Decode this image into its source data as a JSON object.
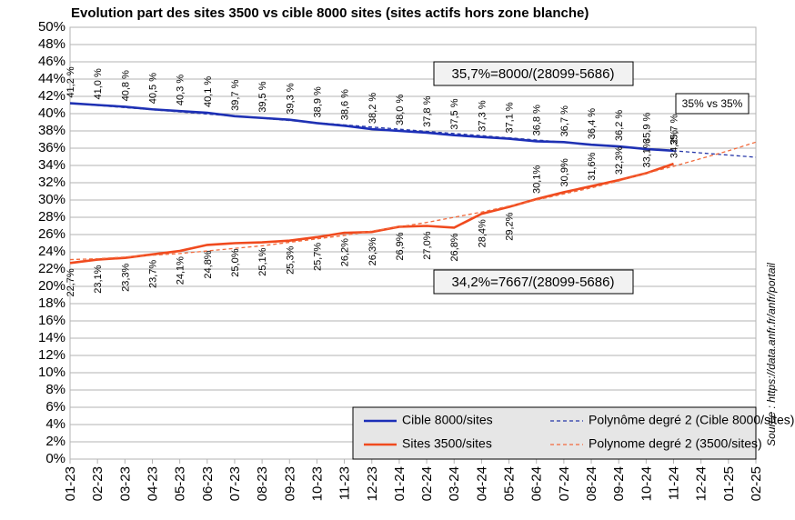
{
  "chart_data": {
    "type": "line",
    "title": "Evolution part des sites 3500 vs cible 8000 sites (sites actifs hors zone blanche)",
    "categories": [
      "01-23",
      "02-23",
      "03-23",
      "04-23",
      "05-23",
      "06-23",
      "07-23",
      "08-23",
      "09-23",
      "10-23",
      "11-23",
      "12-23",
      "01-24",
      "02-24",
      "03-24",
      "04-24",
      "05-24",
      "06-24",
      "07-24",
      "08-24",
      "09-24",
      "10-24",
      "11-24",
      "12-24",
      "01-25",
      "02-25"
    ],
    "series": [
      {
        "name": "Cible 8000/sites",
        "color": "#1c2fb8",
        "style": "solid",
        "values": [
          41.2,
          41.0,
          40.8,
          40.5,
          40.3,
          40.1,
          39.7,
          39.5,
          39.3,
          38.9,
          38.6,
          38.2,
          38.0,
          37.8,
          37.5,
          37.3,
          37.1,
          36.8,
          36.7,
          36.4,
          36.2,
          35.9,
          35.7,
          null,
          null,
          null
        ],
        "value_labels": [
          "41,2 %",
          "41,0 %",
          "40,8 %",
          "40,5 %",
          "40,3 %",
          "40,1 %",
          "39,7 %",
          "39,5 %",
          "39,3 %",
          "38,9 %",
          "38,6 %",
          "38,2 %",
          "38,0 %",
          "37,8 %",
          "37,5 %",
          "37,3 %",
          "37,1 %",
          "36,8 %",
          "36,7 %",
          "36,4 %",
          "36,2 %",
          "35,9 %",
          "35,7 %",
          null,
          null,
          null
        ]
      },
      {
        "name": "Sites 3500/sites",
        "color": "#f04a1e",
        "style": "solid",
        "values": [
          22.7,
          23.1,
          23.3,
          23.7,
          24.1,
          24.8,
          25.0,
          25.1,
          25.3,
          25.7,
          26.2,
          26.3,
          26.9,
          27.0,
          26.8,
          28.4,
          29.2,
          30.1,
          30.9,
          31.6,
          32.3,
          33.1,
          34.2,
          null,
          null,
          null
        ],
        "value_labels": [
          "22,7%",
          "23,1%",
          "23,3%",
          "23,7%",
          "24,1%",
          "24,8%",
          "25,0%",
          "25,1%",
          "25,3%",
          "25,7%",
          "26,2%",
          "26,3%",
          "26,9%",
          "27,0%",
          "26,8%",
          "28,4%",
          "29,2%",
          "30,1%",
          "30,9%",
          "31,6%",
          "32,3%",
          "33,1%",
          "34,2%",
          null,
          null,
          null
        ]
      },
      {
        "name": "Polynôme degré 2 (Cible 8000/sites)",
        "color": "#2536a8",
        "style": "dashed",
        "values": [
          41.2,
          40.95,
          40.7,
          40.45,
          40.2,
          39.95,
          39.7,
          39.45,
          39.2,
          38.95,
          38.7,
          38.45,
          38.2,
          37.95,
          37.7,
          37.45,
          37.2,
          36.95,
          36.7,
          36.45,
          36.2,
          35.95,
          35.7,
          35.45,
          35.2,
          34.95
        ]
      },
      {
        "name": "Polynome degré 2 (3500/sites)",
        "color": "#f26a3c",
        "style": "dashed",
        "values": [
          23.1,
          23.2,
          23.4,
          23.6,
          23.8,
          24.1,
          24.4,
          24.7,
          25.1,
          25.5,
          25.9,
          26.4,
          26.9,
          27.4,
          28.0,
          28.6,
          29.3,
          30.0,
          30.7,
          31.4,
          32.2,
          33.1,
          33.9,
          34.8,
          35.7,
          36.7
        ]
      }
    ],
    "ylim": [
      0,
      50
    ],
    "yticks": [
      {
        "value": 0,
        "label": "0%"
      },
      {
        "value": 2,
        "label": "2%"
      },
      {
        "value": 4,
        "label": "4%"
      },
      {
        "value": 6,
        "label": "6%"
      },
      {
        "value": 8,
        "label": "8%"
      },
      {
        "value": 10,
        "label": "10%"
      },
      {
        "value": 12,
        "label": "12%"
      },
      {
        "value": 14,
        "label": "14%"
      },
      {
        "value": 16,
        "label": "16%"
      },
      {
        "value": 18,
        "label": "18%"
      },
      {
        "value": 20,
        "label": "20%"
      },
      {
        "value": 22,
        "label": "22%"
      },
      {
        "value": 24,
        "label": "24%"
      },
      {
        "value": 26,
        "label": "26%"
      },
      {
        "value": 28,
        "label": "28%"
      },
      {
        "value": 30,
        "label": "30%"
      },
      {
        "value": 32,
        "label": "32%"
      },
      {
        "value": 34,
        "label": "34%"
      },
      {
        "value": 36,
        "label": "36%"
      },
      {
        "value": 38,
        "label": "38%"
      },
      {
        "value": 40,
        "label": "40%"
      },
      {
        "value": 42,
        "label": "42%"
      },
      {
        "value": 44,
        "label": "44%"
      },
      {
        "value": 46,
        "label": "46%"
      },
      {
        "value": 48,
        "label": "48%"
      },
      {
        "value": 50,
        "label": "50%"
      }
    ],
    "grid": true,
    "legend": "bottom right",
    "annotations": [
      "35,7%=8000/(28099-5686)",
      "34,2%=7667/(28099-5686)",
      "35% vs 35%"
    ],
    "source": "Source : https://data.anfr.fr/anfr/portail"
  }
}
